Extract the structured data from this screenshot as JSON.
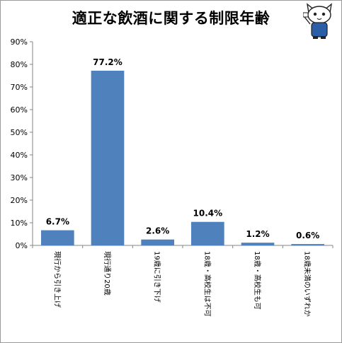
{
  "chart_data": {
    "type": "bar",
    "title": "適正な飲酒に関する制限年齢",
    "categories": [
      "現行から引き上げ",
      "現行通り20歳",
      "19歳に引き下げ",
      "18歳・高校生は不可",
      "18歳・高校生も可",
      "18歳未満のいずれか"
    ],
    "values": [
      6.7,
      77.2,
      2.6,
      10.4,
      1.2,
      0.6
    ],
    "data_labels": [
      "6.7%",
      "77.2%",
      "2.6%",
      "10.4%",
      "1.2%",
      "0.6%"
    ],
    "ylim": [
      0,
      90
    ],
    "yticks": [
      "0%",
      "10%",
      "20%",
      "30%",
      "40%",
      "50%",
      "60%",
      "70%",
      "80%",
      "90%"
    ],
    "xlabel": "",
    "ylabel": "",
    "grid": false,
    "legend": "none",
    "bar_color": "#4f81bd",
    "axis_color": "#868686"
  },
  "mascot": {
    "icon": "cat-mascot-icon"
  }
}
